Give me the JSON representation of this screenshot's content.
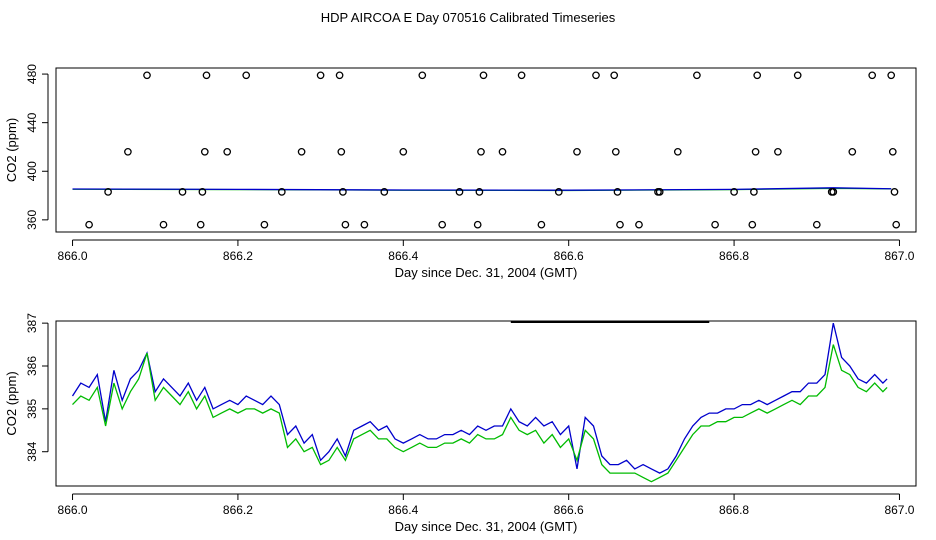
{
  "title": "HDP AIRCOA E  Day 070516  Calibrated Timeseries",
  "chart_data": [
    {
      "type": "scatter",
      "xlabel": "Day since Dec. 31, 2004 (GMT)",
      "ylabel": "CO2 (ppm)",
      "xlim": [
        865.98,
        867.02
      ],
      "ylim": [
        350,
        485
      ],
      "xticks": [
        866.0,
        866.2,
        866.4,
        866.6,
        866.8,
        867.0
      ],
      "xtick_labels": [
        "866.0",
        "866.2",
        "866.4",
        "866.6",
        "866.8",
        "867.0"
      ],
      "yticks": [
        360,
        400,
        440,
        480
      ],
      "ytick_labels": [
        "360",
        "400",
        "440",
        "480"
      ],
      "grid": false,
      "series_colors": [
        "#0000cc",
        "#00bb00"
      ],
      "points": [
        [
          866.02,
          356
        ],
        [
          866.043,
          383
        ],
        [
          866.067,
          416
        ],
        [
          866.09,
          479
        ],
        [
          866.11,
          356
        ],
        [
          866.133,
          383
        ],
        [
          866.155,
          356
        ],
        [
          866.157,
          383
        ],
        [
          866.16,
          416
        ],
        [
          866.162,
          479
        ],
        [
          866.187,
          416
        ],
        [
          866.21,
          479
        ],
        [
          866.232,
          356
        ],
        [
          866.253,
          383
        ],
        [
          866.277,
          416
        ],
        [
          866.3,
          479
        ],
        [
          866.323,
          479
        ],
        [
          866.325,
          416
        ],
        [
          866.327,
          383
        ],
        [
          866.33,
          356
        ],
        [
          866.353,
          356
        ],
        [
          866.377,
          383
        ],
        [
          866.4,
          416
        ],
        [
          866.423,
          479
        ],
        [
          866.447,
          356
        ],
        [
          866.468,
          383
        ],
        [
          866.49,
          356
        ],
        [
          866.492,
          383
        ],
        [
          866.494,
          416
        ],
        [
          866.497,
          479
        ],
        [
          866.52,
          416
        ],
        [
          866.543,
          479
        ],
        [
          866.567,
          356
        ],
        [
          866.588,
          383
        ],
        [
          866.61,
          416
        ],
        [
          866.633,
          479
        ],
        [
          866.655,
          479
        ],
        [
          866.657,
          416
        ],
        [
          866.659,
          383
        ],
        [
          866.662,
          356
        ],
        [
          866.685,
          356
        ],
        [
          866.708,
          383
        ],
        [
          866.71,
          383
        ],
        [
          866.732,
          416
        ],
        [
          866.755,
          479
        ],
        [
          866.777,
          356
        ],
        [
          866.8,
          383
        ],
        [
          866.822,
          356
        ],
        [
          866.824,
          383
        ],
        [
          866.826,
          416
        ],
        [
          866.828,
          479
        ],
        [
          866.853,
          416
        ],
        [
          866.877,
          479
        ],
        [
          866.9,
          356
        ],
        [
          866.918,
          383
        ],
        [
          866.92,
          383
        ],
        [
          866.943,
          416
        ],
        [
          866.967,
          479
        ],
        [
          866.99,
          479
        ],
        [
          866.992,
          416
        ],
        [
          866.994,
          383
        ],
        [
          866.996,
          356
        ]
      ],
      "lines": [
        {
          "color": "#00bb00",
          "x": [
            866.0,
            866.2,
            866.4,
            866.6,
            866.8,
            866.92,
            866.99
          ],
          "y": [
            385.2,
            384.9,
            384.4,
            384.2,
            384.9,
            386.0,
            385.5
          ]
        },
        {
          "color": "#0000cc",
          "x": [
            866.0,
            866.2,
            866.4,
            866.6,
            866.8,
            866.92,
            866.99
          ],
          "y": [
            385.4,
            385.1,
            384.6,
            384.4,
            385.1,
            386.4,
            385.6
          ]
        }
      ]
    },
    {
      "type": "line",
      "xlabel": "Day since Dec. 31, 2004 (GMT)",
      "ylabel": "CO2 (ppm)",
      "xlim": [
        865.98,
        867.02
      ],
      "ylim": [
        383.2,
        387.05
      ],
      "xticks": [
        866.0,
        866.2,
        866.4,
        866.6,
        866.8,
        867.0
      ],
      "xtick_labels": [
        "866.0",
        "866.2",
        "866.4",
        "866.6",
        "866.8",
        "867.0"
      ],
      "yticks": [
        384,
        385,
        386,
        387
      ],
      "ytick_labels": [
        "384",
        "385",
        "386",
        "387"
      ],
      "grid": false,
      "segment": {
        "x": [
          866.53,
          866.77
        ],
        "y": 387.0,
        "color": "#000000"
      },
      "series": [
        {
          "color": "#0000cc",
          "x": [
            866.0,
            866.01,
            866.02,
            866.03,
            866.04,
            866.05,
            866.06,
            866.07,
            866.08,
            866.09,
            866.1,
            866.11,
            866.12,
            866.13,
            866.14,
            866.15,
            866.16,
            866.17,
            866.18,
            866.19,
            866.2,
            866.21,
            866.22,
            866.23,
            866.24,
            866.25,
            866.26,
            866.27,
            866.28,
            866.29,
            866.3,
            866.31,
            866.32,
            866.33,
            866.34,
            866.35,
            866.36,
            866.37,
            866.38,
            866.39,
            866.4,
            866.41,
            866.42,
            866.43,
            866.44,
            866.45,
            866.46,
            866.47,
            866.48,
            866.49,
            866.5,
            866.51,
            866.52,
            866.53,
            866.54,
            866.55,
            866.56,
            866.57,
            866.58,
            866.59,
            866.6,
            866.61,
            866.62,
            866.63,
            866.64,
            866.65,
            866.66,
            866.67,
            866.68,
            866.69,
            866.7,
            866.71,
            866.72,
            866.73,
            866.74,
            866.75,
            866.76,
            866.77,
            866.78,
            866.79,
            866.8,
            866.81,
            866.82,
            866.83,
            866.84,
            866.85,
            866.86,
            866.87,
            866.88,
            866.89,
            866.9,
            866.91,
            866.92,
            866.93,
            866.94,
            866.95,
            866.96,
            866.97,
            866.98,
            866.985
          ],
          "y": [
            385.3,
            385.6,
            385.5,
            385.8,
            384.7,
            385.9,
            385.2,
            385.7,
            385.9,
            386.3,
            385.4,
            385.7,
            385.5,
            385.3,
            385.6,
            385.2,
            385.5,
            385.0,
            385.1,
            385.2,
            385.1,
            385.3,
            385.2,
            385.1,
            385.3,
            385.1,
            384.4,
            384.6,
            384.2,
            384.4,
            383.8,
            384.0,
            384.3,
            383.9,
            384.5,
            384.6,
            384.7,
            384.5,
            384.6,
            384.3,
            384.2,
            384.3,
            384.4,
            384.3,
            384.3,
            384.4,
            384.4,
            384.5,
            384.4,
            384.6,
            384.5,
            384.6,
            384.6,
            385.0,
            384.7,
            384.6,
            384.8,
            384.6,
            384.7,
            384.4,
            384.6,
            383.6,
            384.8,
            384.6,
            383.9,
            383.7,
            383.7,
            383.8,
            383.6,
            383.7,
            383.6,
            383.5,
            383.6,
            383.9,
            384.3,
            384.6,
            384.8,
            384.9,
            384.9,
            385.0,
            385.0,
            385.1,
            385.1,
            385.2,
            385.1,
            385.2,
            385.3,
            385.4,
            385.4,
            385.6,
            385.6,
            385.8,
            387.0,
            386.2,
            386.0,
            385.7,
            385.6,
            385.8,
            385.6,
            385.7
          ]
        },
        {
          "color": "#00bb00",
          "x": [
            866.0,
            866.01,
            866.02,
            866.03,
            866.04,
            866.05,
            866.06,
            866.07,
            866.08,
            866.09,
            866.1,
            866.11,
            866.12,
            866.13,
            866.14,
            866.15,
            866.16,
            866.17,
            866.18,
            866.19,
            866.2,
            866.21,
            866.22,
            866.23,
            866.24,
            866.25,
            866.26,
            866.27,
            866.28,
            866.29,
            866.3,
            866.31,
            866.32,
            866.33,
            866.34,
            866.35,
            866.36,
            866.37,
            866.38,
            866.39,
            866.4,
            866.41,
            866.42,
            866.43,
            866.44,
            866.45,
            866.46,
            866.47,
            866.48,
            866.49,
            866.5,
            866.51,
            866.52,
            866.53,
            866.54,
            866.55,
            866.56,
            866.57,
            866.58,
            866.59,
            866.6,
            866.61,
            866.62,
            866.63,
            866.64,
            866.65,
            866.66,
            866.67,
            866.68,
            866.69,
            866.7,
            866.71,
            866.72,
            866.73,
            866.74,
            866.75,
            866.76,
            866.77,
            866.78,
            866.79,
            866.8,
            866.81,
            866.82,
            866.83,
            866.84,
            866.85,
            866.86,
            866.87,
            866.88,
            866.89,
            866.9,
            866.91,
            866.92,
            866.93,
            866.94,
            866.95,
            866.96,
            866.97,
            866.98,
            866.985
          ],
          "y": [
            385.1,
            385.3,
            385.2,
            385.5,
            384.6,
            385.6,
            385.0,
            385.4,
            385.7,
            386.3,
            385.2,
            385.5,
            385.3,
            385.1,
            385.4,
            385.0,
            385.3,
            384.8,
            384.9,
            385.0,
            384.9,
            385.0,
            385.0,
            384.9,
            385.0,
            384.9,
            384.1,
            384.3,
            384.0,
            384.1,
            383.7,
            383.8,
            384.1,
            383.8,
            384.3,
            384.4,
            384.5,
            384.3,
            384.3,
            384.1,
            384.0,
            384.1,
            384.2,
            384.1,
            384.1,
            384.2,
            384.2,
            384.3,
            384.2,
            384.4,
            384.3,
            384.3,
            384.4,
            384.8,
            384.5,
            384.4,
            384.5,
            384.2,
            384.4,
            384.1,
            384.3,
            383.8,
            384.5,
            384.3,
            383.7,
            383.5,
            383.5,
            383.5,
            383.5,
            383.4,
            383.3,
            383.4,
            383.5,
            383.8,
            384.1,
            384.4,
            384.6,
            384.6,
            384.7,
            384.7,
            384.8,
            384.8,
            384.9,
            385.0,
            384.9,
            385.0,
            385.1,
            385.2,
            385.1,
            385.3,
            385.3,
            385.5,
            386.5,
            385.9,
            385.8,
            385.5,
            385.4,
            385.6,
            385.4,
            385.5
          ]
        }
      ]
    }
  ]
}
